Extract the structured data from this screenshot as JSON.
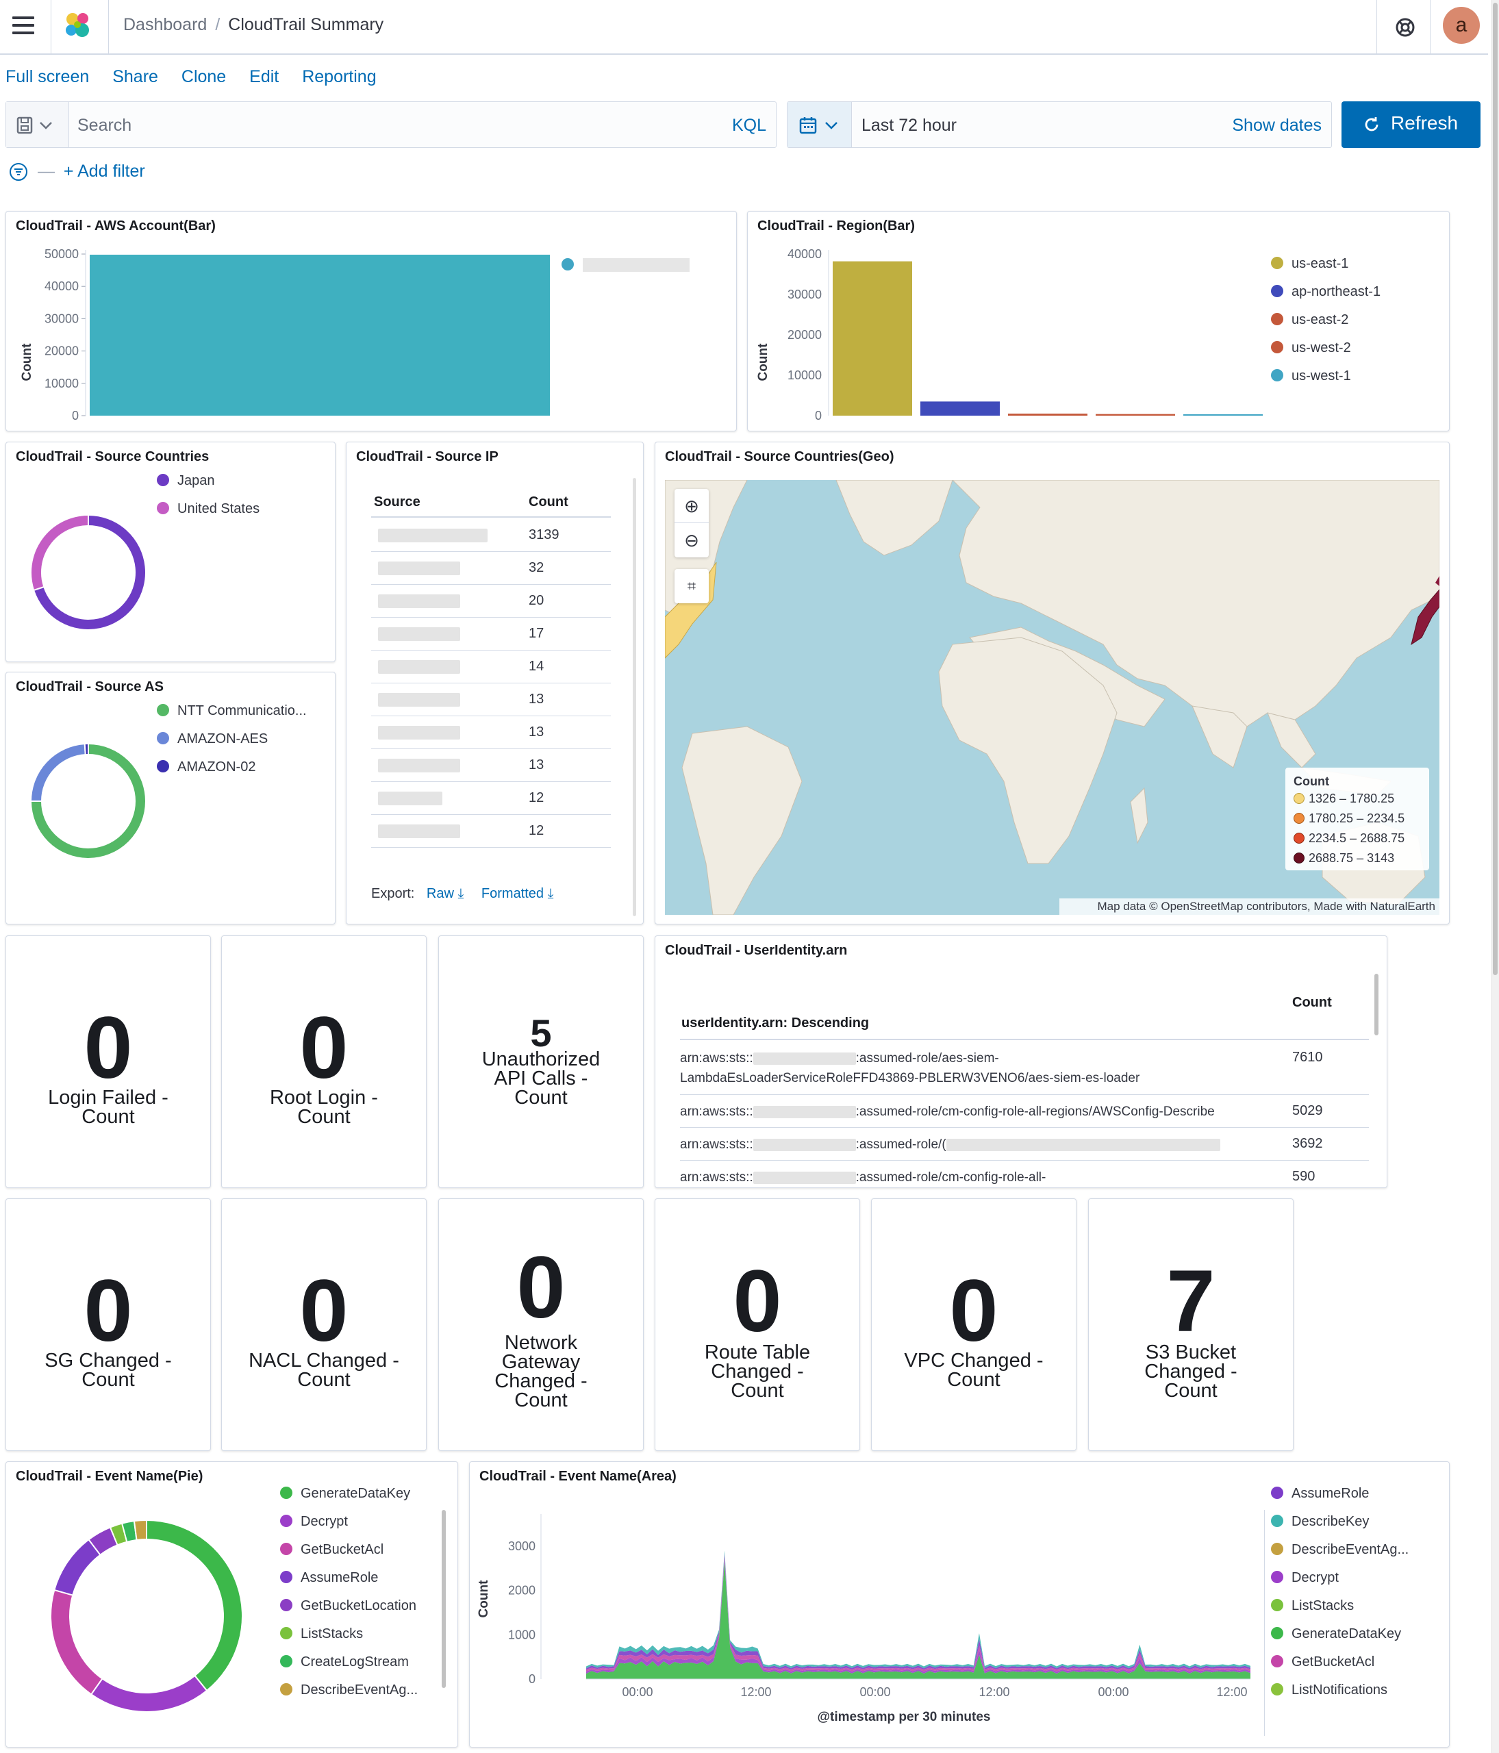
{
  "header": {
    "breadcrumb_root": "Dashboard",
    "breadcrumb_current": "CloudTrail Summary",
    "avatar_letter": "a"
  },
  "topnav": {
    "full_screen": "Full screen",
    "share": "Share",
    "clone": "Clone",
    "edit": "Edit",
    "reporting": "Reporting"
  },
  "query": {
    "search_placeholder": "Search",
    "language": "KQL",
    "time_range": "Last 72 hour",
    "show_dates": "Show dates",
    "refresh_label": "Refresh",
    "add_filter": "+ Add filter"
  },
  "panels": {
    "aws_account": {
      "title": "CloudTrail - AWS Account(Bar)",
      "ylabel": "Count",
      "ticks": [
        "50000",
        "40000",
        "30000",
        "20000",
        "10000",
        "0"
      ]
    },
    "region": {
      "title": "CloudTrail - Region(Bar)",
      "ylabel": "Count",
      "ticks": [
        "40000",
        "30000",
        "20000",
        "10000",
        "0"
      ],
      "legend": [
        "us-east-1",
        "ap-northeast-1",
        "us-east-2",
        "us-west-2",
        "us-west-1"
      ]
    },
    "source_countries": {
      "title": "CloudTrail - Source Countries",
      "legend": [
        "Japan",
        "United States"
      ]
    },
    "source_as": {
      "title": "CloudTrail - Source AS",
      "legend": [
        "NTT Communicatio...",
        "AMAZON-AES",
        "AMAZON-02"
      ]
    },
    "source_ip": {
      "title": "CloudTrail - Source IP",
      "col_source": "Source",
      "col_count": "Count",
      "counts": [
        "3139",
        "32",
        "20",
        "17",
        "14",
        "13",
        "13",
        "13",
        "12",
        "12"
      ],
      "export_label": "Export:",
      "raw": "Raw",
      "formatted": "Formatted"
    },
    "geo": {
      "title": "CloudTrail - Source Countries(Geo)",
      "legend_title": "Count",
      "legend": [
        "1326 – 1780.25",
        "1780.25 – 2234.5",
        "2234.5 – 2688.75",
        "2688.75 – 3143"
      ],
      "attribution": "Map data © OpenStreetMap contributors, Made with NaturalEarth"
    },
    "arn": {
      "title": "CloudTrail - UserIdentity.arn",
      "col_arn": "userIdentity.arn: Descending",
      "col_count": "Count",
      "rows": [
        {
          "prefix": "arn:aws:sts::",
          "suffix": ":assumed-role/aes-siem-",
          "line2": "LambdaEsLoaderServiceRoleFFD43869-PBLERW3VENO6/aes-siem-es-loader",
          "count": "7610"
        },
        {
          "prefix": "arn:aws:sts::",
          "suffix": ":assumed-role/cm-config-role-all-regions/AWSConfig-Describe",
          "line2": "",
          "count": "5029"
        },
        {
          "prefix": "arn:aws:sts::",
          "suffix": ":assumed-role/(",
          "line2": "",
          "count": "3692"
        },
        {
          "prefix": "arn:aws:sts::",
          "suffix": ":assumed-role/cm-config-role-all-",
          "line2": "",
          "count": "590"
        }
      ]
    },
    "event_pie": {
      "title": "CloudTrail - Event Name(Pie)",
      "legend": [
        "GenerateDataKey",
        "Decrypt",
        "GetBucketAcl",
        "AssumeRole",
        "GetBucketLocation",
        "ListStacks",
        "CreateLogStream",
        "DescribeEventAg..."
      ]
    },
    "event_area": {
      "title": "CloudTrail - Event Name(Area)",
      "ylabel": "Count",
      "xlabel": "@timestamp per 30 minutes",
      "yticks": [
        "3000",
        "2000",
        "1000",
        "0"
      ],
      "xticks": [
        "00:00",
        "12:00",
        "00:00",
        "12:00",
        "00:00",
        "12:00"
      ],
      "legend": [
        "AssumeRole",
        "DescribeKey",
        "DescribeEventAg...",
        "Decrypt",
        "ListStacks",
        "GenerateDataKey",
        "GetBucketAcl",
        "ListNotifications"
      ]
    }
  },
  "metrics": [
    {
      "value": "0",
      "label": "Login Failed - Count"
    },
    {
      "value": "0",
      "label": "Root Login - Count"
    },
    {
      "value": "5",
      "label": "Unauthorized API Calls - Count"
    },
    {
      "value": "0",
      "label": "SG Changed - Count"
    },
    {
      "value": "0",
      "label": "NACL Changed - Count"
    },
    {
      "value": "0",
      "label": "Network Gateway Changed - Count"
    },
    {
      "value": "0",
      "label": "Route Table Changed - Count"
    },
    {
      "value": "0",
      "label": "VPC Changed - Count"
    },
    {
      "value": "7",
      "label": "S3 Bucket Changed - Count"
    }
  ],
  "chart_data": [
    {
      "type": "bar",
      "title": "CloudTrail - AWS Account(Bar)",
      "ylabel": "Count",
      "ylim": [
        0,
        50000
      ],
      "series": [
        {
          "values": [
            49800
          ]
        }
      ]
    },
    {
      "type": "bar",
      "title": "CloudTrail - Region(Bar)",
      "ylabel": "Count",
      "ylim": [
        0,
        40000
      ],
      "categories": [
        "us-east-1",
        "ap-northeast-1",
        "us-east-2",
        "us-west-2",
        "us-west-1"
      ],
      "values": [
        38200,
        3500,
        500,
        400,
        150
      ],
      "colors": [
        "#bfaf40",
        "#3f4bbb",
        "#c4583a",
        "#c4583a",
        "#40a5c4"
      ]
    },
    {
      "type": "pie",
      "title": "CloudTrail - Source Countries",
      "categories": [
        "Japan",
        "United States"
      ],
      "values": [
        0.7,
        0.3
      ],
      "colors": [
        "#6c3bc4",
        "#c45cc4"
      ]
    },
    {
      "type": "pie",
      "title": "CloudTrail - Source AS",
      "categories": [
        "NTT Communicatio...",
        "AMAZON-AES",
        "AMAZON-02"
      ],
      "values": [
        0.75,
        0.24,
        0.01
      ],
      "colors": [
        "#54b865",
        "#6a87d8",
        "#3a2fb0"
      ]
    },
    {
      "type": "pie",
      "title": "CloudTrail - Event Name(Pie)",
      "categories": [
        "GenerateDataKey",
        "Decrypt",
        "GetBucketAcl",
        "AssumeRole",
        "GetBucketLocation",
        "ListStacks",
        "CreateLogStream",
        "DescribeEventAg..."
      ],
      "values": [
        0.38,
        0.2,
        0.19,
        0.1,
        0.04,
        0.02,
        0.02,
        0.02
      ],
      "colors": [
        "#3cb84a",
        "#9b3ec9",
        "#c445a8",
        "#7c3dc9",
        "#8b3ec4",
        "#7ac23c",
        "#34b85a",
        "#c4a040"
      ]
    }
  ]
}
